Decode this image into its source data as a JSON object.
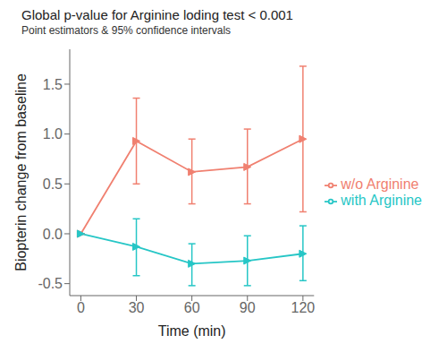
{
  "chart_data": {
    "type": "line",
    "title": "Global p-value for Arginine loding test < 0.001",
    "subtitle": "Point estimators & 95% confidence intervals",
    "xlabel": "Time (min)",
    "ylabel": "Biopterin change from baseline",
    "x": [
      0,
      30,
      60,
      90,
      120
    ],
    "series": [
      {
        "name": "w/o Arginine",
        "color": "#F08070",
        "marker": "triangle-right",
        "values": [
          0.0,
          0.93,
          0.62,
          0.67,
          0.95
        ],
        "error_low": [
          0.0,
          0.5,
          0.3,
          0.3,
          0.22
        ],
        "error_high": [
          0.0,
          1.36,
          0.95,
          1.05,
          1.68
        ]
      },
      {
        "name": "with Arginine",
        "color": "#26C6C6",
        "marker": "triangle-right",
        "values": [
          0.0,
          -0.13,
          -0.3,
          -0.27,
          -0.2
        ],
        "error_low": [
          0.0,
          -0.42,
          -0.52,
          -0.52,
          -0.47
        ],
        "error_high": [
          0.0,
          0.15,
          -0.1,
          -0.02,
          0.08
        ]
      }
    ],
    "xlim": [
      -6,
      126
    ],
    "xticks": [
      0,
      30,
      60,
      90,
      120
    ],
    "ylim": [
      -0.62,
      1.85
    ],
    "yticks": [
      -0.5,
      {
        "value": 0.0,
        "label": "0.0"
      },
      0.5,
      {
        "value": 1.0,
        "label": "1.0"
      },
      1.5
    ],
    "legend": "right"
  }
}
